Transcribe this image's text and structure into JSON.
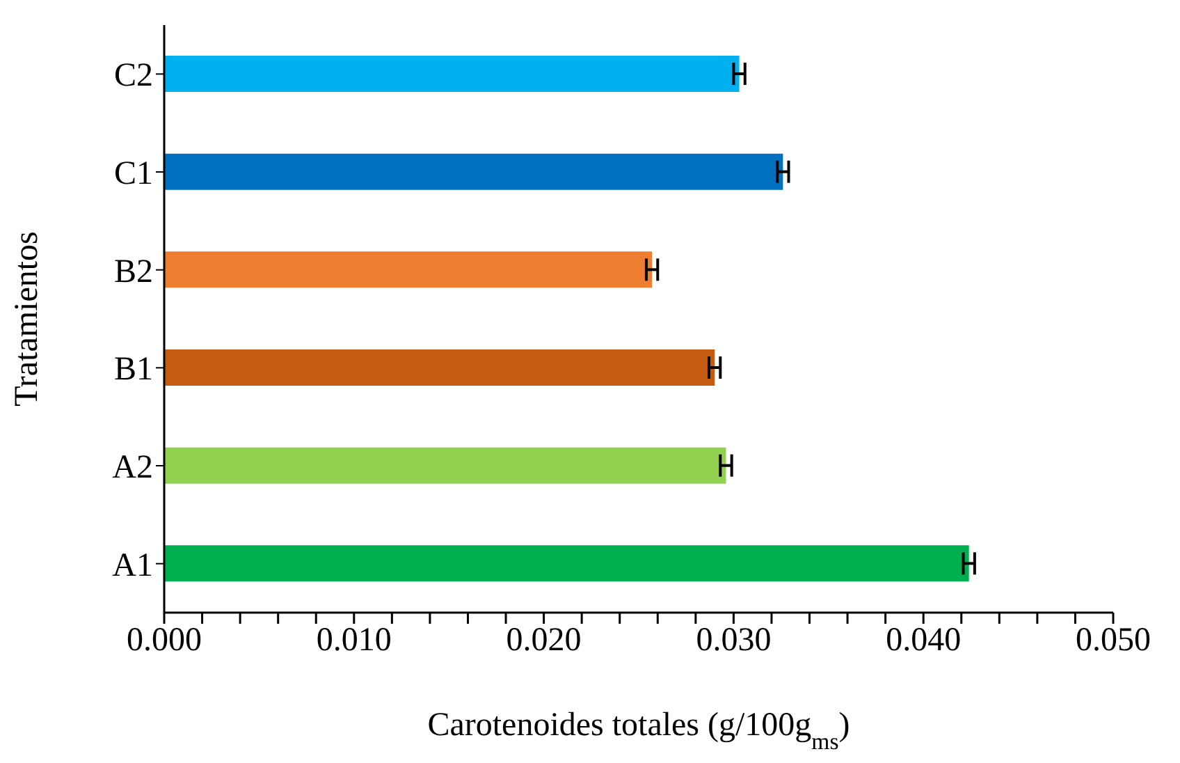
{
  "chart_data": {
    "type": "bar",
    "orientation": "horizontal",
    "categories": [
      "C2",
      "C1",
      "B2",
      "B1",
      "A2",
      "A1"
    ],
    "values": [
      0.0303,
      0.0326,
      0.0257,
      0.029,
      0.0296,
      0.0424
    ],
    "errors": [
      0.0003,
      0.0003,
      0.0003,
      0.0003,
      0.0003,
      0.0003
    ],
    "colors": [
      "#00b0f0",
      "#0070c0",
      "#ed7d31",
      "#c55a11",
      "#92d050",
      "#00b050"
    ],
    "xlabel": "Carotenoides totales (g/100g$_{ms}$)",
    "ylabel": "Tratamientos",
    "xlim": [
      0,
      0.05
    ],
    "xticks": [
      {
        "value": 0,
        "label": "0.000"
      },
      {
        "value": 0.002,
        "label": null
      },
      {
        "value": 0.004,
        "label": null
      },
      {
        "value": 0.006,
        "label": null
      },
      {
        "value": 0.008,
        "label": null
      },
      {
        "value": 0.01,
        "label": "0.010"
      },
      {
        "value": 0.012,
        "label": null
      },
      {
        "value": 0.014,
        "label": null
      },
      {
        "value": 0.016,
        "label": null
      },
      {
        "value": 0.018,
        "label": null
      },
      {
        "value": 0.02,
        "label": "0.020"
      },
      {
        "value": 0.022,
        "label": null
      },
      {
        "value": 0.024,
        "label": null
      },
      {
        "value": 0.026,
        "label": null
      },
      {
        "value": 0.028,
        "label": null
      },
      {
        "value": 0.03,
        "label": "0.030"
      },
      {
        "value": 0.032,
        "label": null
      },
      {
        "value": 0.034,
        "label": null
      },
      {
        "value": 0.036,
        "label": null
      },
      {
        "value": 0.038,
        "label": null
      },
      {
        "value": 0.04,
        "label": "0.040"
      },
      {
        "value": 0.042,
        "label": null
      },
      {
        "value": 0.044,
        "label": null
      },
      {
        "value": 0.046,
        "label": null
      },
      {
        "value": 0.048,
        "label": null
      },
      {
        "value": 0.05,
        "label": "0.050"
      }
    ],
    "grid": false,
    "legend": false
  }
}
